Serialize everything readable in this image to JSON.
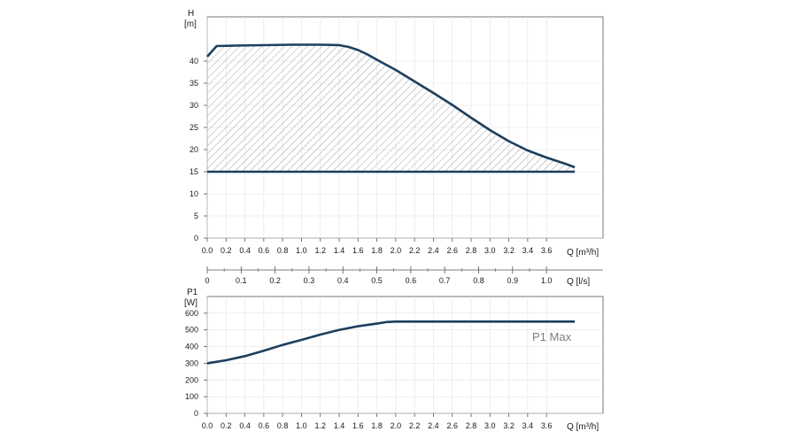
{
  "chart_data": [
    {
      "type": "area",
      "ylabel_top": "H",
      "ylabel_unit": "[m]",
      "xlabel": "Q [m³/h]",
      "grid": true,
      "xlim": [
        0,
        4.2
      ],
      "ylim": [
        0,
        50
      ],
      "x_ticks": [
        0.0,
        0.2,
        0.4,
        0.6,
        0.8,
        1.0,
        1.2,
        1.4,
        1.6,
        1.8,
        2.0,
        2.2,
        2.4,
        2.6,
        2.8,
        3.0,
        3.2,
        3.4,
        3.6
      ],
      "y_ticks": [
        0,
        5,
        10,
        15,
        20,
        25,
        30,
        35,
        40
      ],
      "series": [
        {
          "role": "max_curve",
          "color": "#1c3f5e",
          "x": [
            0.0,
            0.1,
            0.3,
            0.6,
            0.9,
            1.2,
            1.4,
            1.5,
            1.6,
            1.7,
            1.8,
            2.0,
            2.2,
            2.4,
            2.6,
            2.8,
            3.0,
            3.2,
            3.4,
            3.6,
            3.8,
            3.9
          ],
          "y": [
            41,
            43.4,
            43.5,
            43.6,
            43.7,
            43.7,
            43.6,
            43.2,
            42.5,
            41.5,
            40.3,
            38.0,
            35.4,
            32.8,
            30.1,
            27.2,
            24.4,
            21.9,
            19.8,
            18.2,
            16.8,
            16.0
          ]
        },
        {
          "role": "min_line",
          "color": "#1c3f5e",
          "x": [
            0.0,
            3.9
          ],
          "y": [
            15,
            15
          ]
        }
      ],
      "hatch_region": "between max_curve and min_line"
    },
    {
      "type": "axis",
      "xlabel": "Q [l/s]",
      "xlim": [
        0,
        1.1667
      ],
      "x_ticks": [
        0,
        0.1,
        0.2,
        0.3,
        0.4,
        0.5,
        0.6,
        0.7,
        0.8,
        0.9,
        1.0
      ],
      "x_tick_labels": [
        "0",
        "0.1",
        "0.2",
        "0.3",
        "0.4",
        "0.5",
        "0.6",
        "0.7",
        "0.8",
        "0.9",
        "1.0"
      ]
    },
    {
      "type": "line",
      "ylabel_top": "P1",
      "ylabel_unit": "[W]",
      "xlabel": "Q [m³/h]",
      "grid": true,
      "xlim": [
        0,
        4.2
      ],
      "ylim": [
        0,
        700
      ],
      "x_ticks": [
        0.0,
        0.2,
        0.4,
        0.6,
        0.8,
        1.0,
        1.2,
        1.4,
        1.6,
        1.8,
        2.0,
        2.2,
        2.4,
        2.6,
        2.8,
        3.0,
        3.2,
        3.4,
        3.6
      ],
      "y_ticks": [
        0,
        100,
        200,
        300,
        400,
        500,
        600
      ],
      "series": [
        {
          "role": "p1_curve",
          "color": "#1c3f5e",
          "x": [
            0.0,
            0.2,
            0.4,
            0.6,
            0.8,
            1.0,
            1.2,
            1.4,
            1.6,
            1.8,
            1.9,
            2.0,
            2.4,
            2.8,
            3.2,
            3.6,
            3.9
          ],
          "y": [
            300,
            318,
            343,
            375,
            410,
            440,
            472,
            500,
            522,
            538,
            547,
            550,
            550,
            550,
            550,
            550,
            550
          ]
        }
      ],
      "annotation": "P1 Max"
    }
  ]
}
